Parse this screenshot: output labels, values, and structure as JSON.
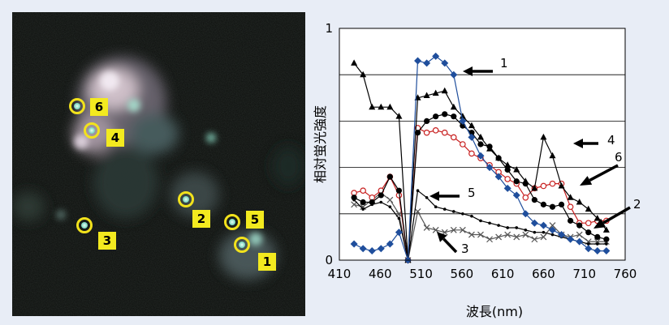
{
  "micrograph": {
    "cells": [
      {
        "id": "6",
        "label": "6"
      },
      {
        "id": "4",
        "label": "4"
      },
      {
        "id": "2",
        "label": "2"
      },
      {
        "id": "5",
        "label": "5"
      },
      {
        "id": "3",
        "label": "3"
      },
      {
        "id": "1",
        "label": "1"
      }
    ]
  },
  "chart_data": {
    "type": "line",
    "title": "",
    "xlabel": "波長(nm)",
    "ylabel": "相対蛍光強度",
    "xlim": [
      410,
      760
    ],
    "ylim": [
      0,
      1
    ],
    "x_ticks": [
      "410",
      "460",
      "510",
      "560",
      "610",
      "660",
      "710",
      "760"
    ],
    "y_ticks": [
      "0",
      "1"
    ],
    "grid": "horizontal",
    "series": [
      {
        "name": "1",
        "color": "#1f4e9c",
        "marker": "diamond",
        "x": [
          428,
          439,
          450,
          461,
          472,
          483,
          494,
          506,
          517,
          528,
          539,
          550,
          561,
          572,
          583,
          594,
          605,
          616,
          627,
          638,
          649,
          660,
          671,
          682,
          693,
          704,
          715,
          726,
          737
        ],
        "y": [
          0.07,
          0.05,
          0.04,
          0.05,
          0.07,
          0.12,
          0.0,
          0.86,
          0.85,
          0.88,
          0.85,
          0.8,
          0.6,
          0.53,
          0.45,
          0.4,
          0.36,
          0.31,
          0.28,
          0.2,
          0.16,
          0.15,
          0.13,
          0.11,
          0.09,
          0.08,
          0.05,
          0.04,
          0.04
        ]
      },
      {
        "name": "2",
        "color": "#000000",
        "marker": "circle",
        "x": [
          428,
          439,
          450,
          461,
          472,
          483,
          494,
          506,
          517,
          528,
          539,
          550,
          561,
          572,
          583,
          594,
          605,
          616,
          627,
          638,
          649,
          660,
          671,
          682,
          693,
          704,
          715,
          726,
          737
        ],
        "y": [
          0.27,
          0.25,
          0.25,
          0.28,
          0.36,
          0.3,
          0.0,
          0.55,
          0.6,
          0.62,
          0.63,
          0.62,
          0.58,
          0.55,
          0.5,
          0.49,
          0.44,
          0.39,
          0.34,
          0.33,
          0.26,
          0.24,
          0.23,
          0.24,
          0.17,
          0.15,
          0.12,
          0.1,
          0.09
        ]
      },
      {
        "name": "3",
        "color": "#555555",
        "marker": "x",
        "x": [
          428,
          439,
          450,
          461,
          472,
          483,
          494,
          506,
          517,
          528,
          539,
          550,
          561,
          572,
          583,
          594,
          605,
          616,
          627,
          638,
          649,
          660,
          671,
          682,
          693,
          704,
          715,
          726,
          737
        ],
        "y": [
          0.24,
          0.23,
          0.26,
          0.29,
          0.26,
          0.2,
          0.0,
          0.21,
          0.14,
          0.13,
          0.12,
          0.13,
          0.13,
          0.11,
          0.11,
          0.09,
          0.1,
          0.11,
          0.1,
          0.11,
          0.09,
          0.1,
          0.15,
          0.11,
          0.1,
          0.11,
          0.08,
          0.08,
          0.08
        ]
      },
      {
        "name": "4",
        "color": "#000000",
        "marker": "triangle",
        "x": [
          428,
          439,
          450,
          461,
          472,
          483,
          494,
          506,
          517,
          528,
          539,
          550,
          561,
          572,
          583,
          594,
          605,
          616,
          627,
          638,
          649,
          660,
          671,
          682,
          693,
          704,
          715,
          726,
          737
        ],
        "y": [
          0.85,
          0.8,
          0.66,
          0.66,
          0.66,
          0.62,
          0.0,
          0.7,
          0.71,
          0.72,
          0.73,
          0.66,
          0.62,
          0.58,
          0.53,
          0.48,
          0.44,
          0.41,
          0.39,
          0.34,
          0.31,
          0.53,
          0.45,
          0.32,
          0.27,
          0.25,
          0.22,
          0.18,
          0.13
        ]
      },
      {
        "name": "5",
        "color": "#000000",
        "marker": "dot",
        "x": [
          428,
          439,
          450,
          461,
          472,
          483,
          494,
          506,
          517,
          528,
          539,
          550,
          561,
          572,
          583,
          594,
          605,
          616,
          627,
          638,
          649,
          660,
          671,
          682,
          693,
          704,
          715,
          726,
          737
        ],
        "y": [
          0.26,
          0.22,
          0.24,
          0.25,
          0.23,
          0.18,
          0.0,
          0.3,
          0.27,
          0.23,
          0.22,
          0.21,
          0.2,
          0.19,
          0.17,
          0.16,
          0.15,
          0.14,
          0.14,
          0.13,
          0.12,
          0.12,
          0.11,
          0.1,
          0.09,
          0.08,
          0.07,
          0.07,
          0.07
        ]
      },
      {
        "name": "6",
        "color": "#c82020",
        "marker": "open-circle",
        "x": [
          428,
          439,
          450,
          461,
          472,
          483,
          494,
          506,
          517,
          528,
          539,
          550,
          561,
          572,
          583,
          594,
          605,
          616,
          627,
          638,
          649,
          660,
          671,
          682,
          693,
          704,
          715,
          726,
          737
        ],
        "y": [
          0.29,
          0.3,
          0.27,
          0.3,
          0.36,
          0.28,
          0.0,
          0.57,
          0.55,
          0.56,
          0.55,
          0.53,
          0.5,
          0.46,
          0.44,
          0.41,
          0.38,
          0.35,
          0.33,
          0.27,
          0.31,
          0.32,
          0.33,
          0.33,
          0.23,
          0.16,
          0.16,
          0.17,
          0.17
        ]
      }
    ],
    "annotations": [
      {
        "text": "1"
      },
      {
        "text": "4"
      },
      {
        "text": "6"
      },
      {
        "text": "5"
      },
      {
        "text": "2"
      },
      {
        "text": "3"
      }
    ]
  }
}
